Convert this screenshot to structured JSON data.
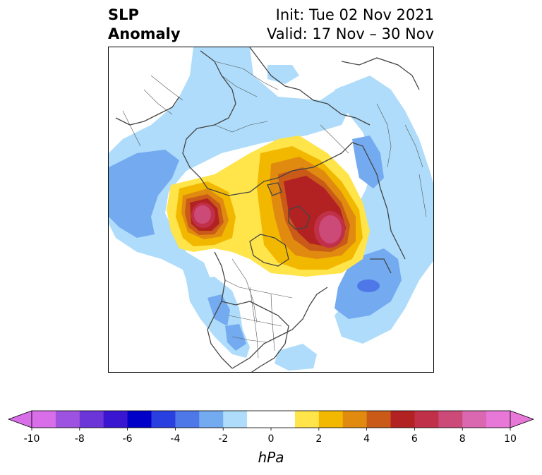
{
  "title": {
    "left_line1": "SLP",
    "left_line2": "Anomaly",
    "right_line1": "Init: Tue 02 Nov 2021",
    "right_line2": "Valid: 17 Nov – 30 Nov"
  },
  "colorbar": {
    "unit_label": "hPa",
    "ticks": [
      "-10",
      "-8",
      "-6",
      "-4",
      "-2",
      "0",
      "2",
      "4",
      "6",
      "8",
      "10"
    ],
    "levels": [
      -10,
      -9,
      -8,
      -7,
      -6,
      -5,
      -4,
      -3,
      -2,
      -1,
      0,
      1,
      2,
      3,
      4,
      5,
      6,
      7,
      8,
      9,
      10
    ],
    "colors": [
      "#d86fe8",
      "#9e52e0",
      "#6b35d8",
      "#3a16d0",
      "#0000c8",
      "#2a3fe0",
      "#4e78e8",
      "#74aaf0",
      "#aedcfa",
      "#ffffff",
      "#ffffff",
      "#ffe44a",
      "#f2b800",
      "#e08a10",
      "#c95a18",
      "#b22222",
      "#c03048",
      "#cc4a78",
      "#da68b0",
      "#e878d8"
    ],
    "under_color": "#d86fe8",
    "over_color": "#e878d8"
  },
  "map": {
    "projection": "north-polar-stereographic",
    "anomaly_features": [
      {
        "name": "positive-anomaly-arctic-siberia",
        "peak_hPa": 10
      },
      {
        "name": "positive-anomaly-north-atlantic",
        "peak_hPa": 9
      },
      {
        "name": "negative-anomaly-north-pacific",
        "peak_hPa": -4
      },
      {
        "name": "negative-anomaly-eurasia",
        "peak_hPa": -3
      }
    ]
  }
}
